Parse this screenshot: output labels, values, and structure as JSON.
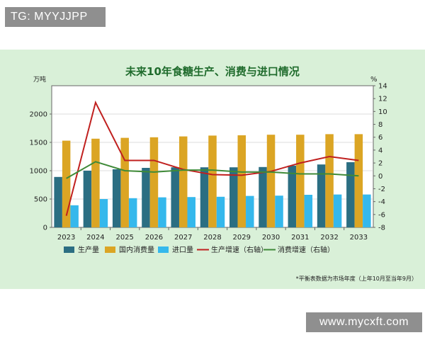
{
  "watermarks": {
    "top": "TG: MYYJJPP",
    "bottom": "www.mycxft.com"
  },
  "colors": {
    "production": "#2b6e82",
    "consumption": "#dba524",
    "imports": "#35b8ec",
    "production_growth": "#c0201f",
    "consumption_growth": "#3f8a38",
    "background": "#d9f0d8"
  },
  "chart_data": {
    "type": "bar",
    "title": "未来10年食糖生产、消费与进口情况",
    "y_left_unit": "万吨",
    "y_right_unit": "%",
    "ylim_left": [
      0,
      2500
    ],
    "ylim_right": [
      -8,
      14
    ],
    "yticks_left": [
      0,
      500,
      1000,
      1500,
      2000
    ],
    "yticks_right": [
      -8,
      -6,
      -4,
      -2,
      0,
      2,
      4,
      6,
      8,
      10,
      12,
      14
    ],
    "categories": [
      "2023",
      "2024",
      "2025",
      "2026",
      "2027",
      "2028",
      "2029",
      "2030",
      "2031",
      "2032",
      "2033"
    ],
    "series": [
      {
        "name": "生产量",
        "type": "bar",
        "axis": "left",
        "values": [
          890,
          1000,
          1025,
          1050,
          1060,
          1060,
          1060,
          1065,
          1090,
          1110,
          1150
        ]
      },
      {
        "name": "国内消费量",
        "type": "bar",
        "axis": "left",
        "values": [
          1530,
          1565,
          1580,
          1590,
          1605,
          1620,
          1625,
          1635,
          1635,
          1645,
          1645
        ]
      },
      {
        "name": "进口量",
        "type": "bar",
        "axis": "left",
        "values": [
          390,
          500,
          515,
          530,
          535,
          540,
          555,
          560,
          575,
          580,
          580
        ]
      },
      {
        "name": "生产增速（右轴）",
        "type": "line",
        "axis": "right",
        "values": [
          -6.2,
          11.4,
          2.4,
          2.4,
          1.0,
          0.2,
          0.1,
          0.7,
          2.0,
          3.0,
          2.4
        ]
      },
      {
        "name": "消费增速（右轴）",
        "type": "line",
        "axis": "right",
        "values": [
          -0.4,
          2.2,
          0.8,
          0.6,
          0.9,
          0.9,
          0.6,
          0.6,
          0.3,
          0.3,
          0.0
        ]
      }
    ],
    "legend_position": "bottom",
    "footnote": "*平衡表数据为市场年度（上年10月至当年9月）"
  }
}
